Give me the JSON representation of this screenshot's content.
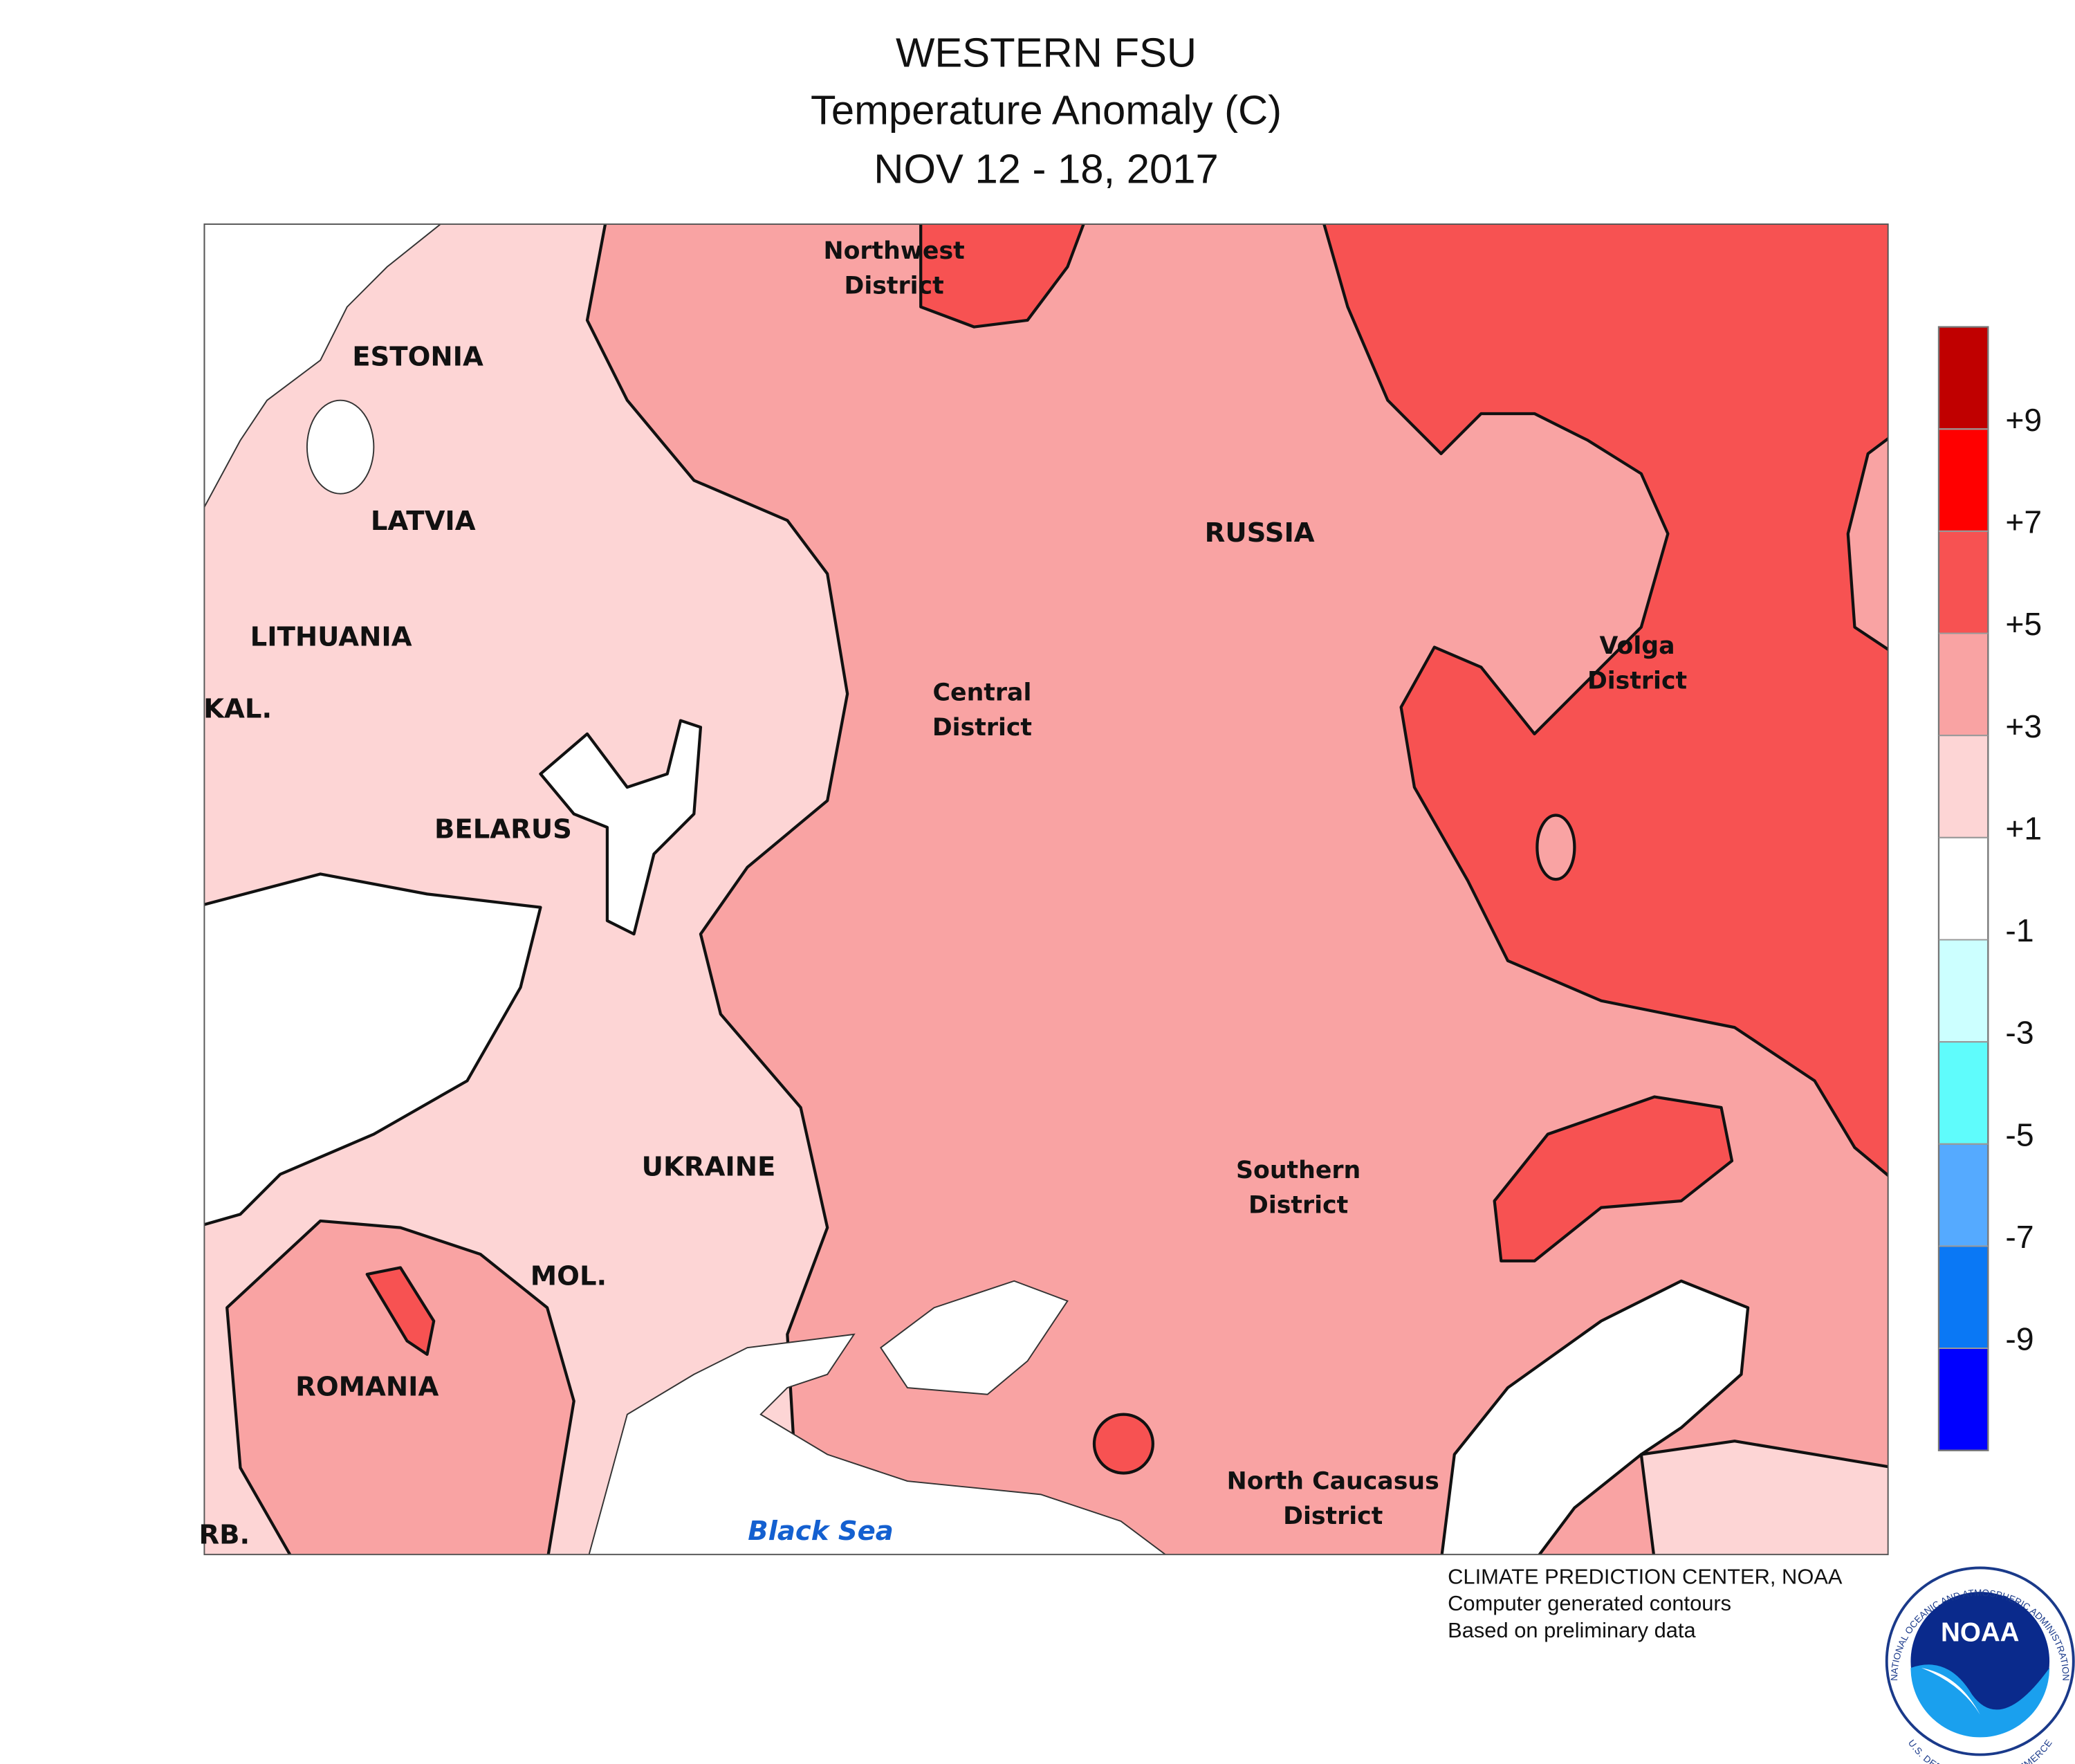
{
  "header": {
    "title": "WESTERN FSU",
    "subtitle": "Temperature Anomaly (C)",
    "date": "NOV 12 - 18, 2017"
  },
  "map": {
    "labels": {
      "estonia": "ESTONIA",
      "latvia": "LATVIA",
      "lithuania": "LITHUANIA",
      "kaliningrad": "KAL.",
      "belarus": "BELARUS",
      "ukraine": "UKRAINE",
      "moldova": "MOL.",
      "romania": "ROMANIA",
      "serbia": "RB.",
      "russia": "RUSSIA",
      "black_sea": "Black Sea",
      "northwest_district": [
        "Northwest",
        "District"
      ],
      "central_district": [
        "Central",
        "District"
      ],
      "volga_district": [
        "Volga",
        "District"
      ],
      "southern_district": [
        "Southern",
        "District"
      ],
      "north_caucasus_district": [
        "North Caucasus",
        "District"
      ]
    }
  },
  "legend": {
    "colors": [
      "#c00000",
      "#ff0000",
      "#f75252",
      "#f9a3a3",
      "#fdd5d5",
      "#ffffff",
      "#ccffff",
      "#5ffcfc",
      "#55aaff",
      "#0a78f5",
      "#0000ff"
    ],
    "ticks": [
      {
        "value": 9,
        "label": "+9"
      },
      {
        "value": 7,
        "label": "+7"
      },
      {
        "value": 5,
        "label": "+5"
      },
      {
        "value": 3,
        "label": "+3"
      },
      {
        "value": 1,
        "label": "+1"
      },
      -1,
      -3,
      -5,
      -7,
      -9
    ]
  },
  "credits": [
    "CLIMATE PREDICTION CENTER, NOAA",
    "Computer generated contours",
    "Based on preliminary data"
  ],
  "logo": {
    "name": "NOAA",
    "ring_top": "NATIONAL OCEANIC AND ATMOSPHERIC ADMINISTRATION",
    "ring_bottom": "U.S. DEPARTMENT OF COMMERCE"
  }
}
